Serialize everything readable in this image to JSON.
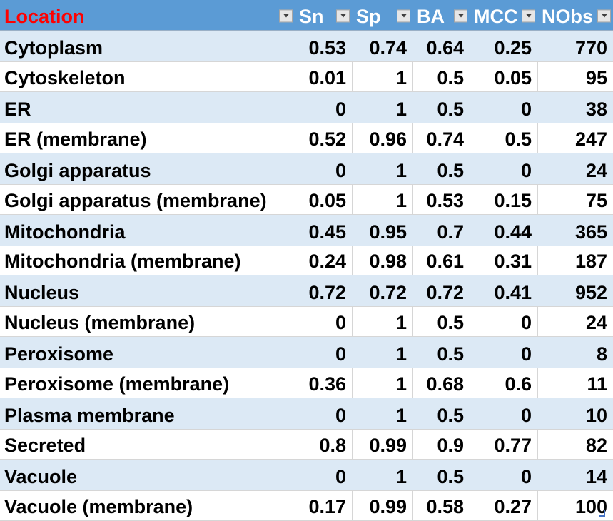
{
  "table": {
    "columns": [
      {
        "key": "location",
        "label": "Location",
        "text_color": "#FF0000"
      },
      {
        "key": "sn",
        "label": "Sn",
        "text_color": "#FFFFFF"
      },
      {
        "key": "sp",
        "label": "Sp",
        "text_color": "#FFFFFF"
      },
      {
        "key": "ba",
        "label": "BA",
        "text_color": "#FFFFFF"
      },
      {
        "key": "mcc",
        "label": "MCC",
        "text_color": "#FFFFFF"
      },
      {
        "key": "nobs",
        "label": "NObs",
        "text_color": "#FFFFFF"
      }
    ],
    "rows": [
      [
        "Cytoplasm",
        "0.53",
        "0.74",
        "0.64",
        "0.25",
        "770"
      ],
      [
        "Cytoskeleton",
        "0.01",
        "1",
        "0.5",
        "0.05",
        "95"
      ],
      [
        "ER",
        "0",
        "1",
        "0.5",
        "0",
        "38"
      ],
      [
        "ER (membrane)",
        "0.52",
        "0.96",
        "0.74",
        "0.5",
        "247"
      ],
      [
        "Golgi apparatus",
        "0",
        "1",
        "0.5",
        "0",
        "24"
      ],
      [
        "Golgi apparatus (membrane)",
        "0.05",
        "1",
        "0.53",
        "0.15",
        "75"
      ],
      [
        "Mitochondria",
        "0.45",
        "0.95",
        "0.7",
        "0.44",
        "365"
      ],
      [
        "Mitochondria (membrane)",
        "0.24",
        "0.98",
        "0.61",
        "0.31",
        "187"
      ],
      [
        "Nucleus",
        "0.72",
        "0.72",
        "0.72",
        "0.41",
        "952"
      ],
      [
        "Nucleus (membrane)",
        "0",
        "1",
        "0.5",
        "0",
        "24"
      ],
      [
        "Peroxisome",
        "0",
        "1",
        "0.5",
        "0",
        "8"
      ],
      [
        "Peroxisome (membrane)",
        "0.36",
        "1",
        "0.68",
        "0.6",
        "11"
      ],
      [
        "Plasma membrane",
        "0",
        "1",
        "0.5",
        "0",
        "10"
      ],
      [
        "Secreted",
        "0.8",
        "0.99",
        "0.9",
        "0.77",
        "82"
      ],
      [
        "Vacuole",
        "0",
        "1",
        "0.5",
        "0",
        "14"
      ],
      [
        "Vacuole (membrane)",
        "0.17",
        "0.99",
        "0.58",
        "0.27",
        "100"
      ]
    ]
  },
  "icons": {
    "filter_dropdown": "autofilter-down-arrow"
  },
  "colors": {
    "header_bg": "#5B9BD5",
    "band_row_bg": "#DCE9F5",
    "plain_row_bg": "#FFFFFF",
    "gridline": "#D6D6D6",
    "header_text": "#FFFFFF",
    "location_header_text": "#FF0000",
    "data_text": "#000000",
    "resize_handle": "#4472C4"
  }
}
